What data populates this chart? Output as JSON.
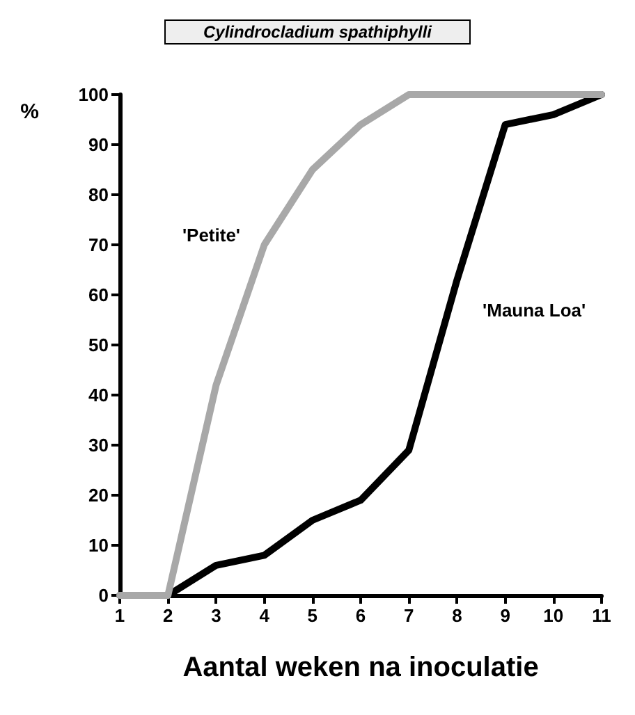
{
  "chart_data": {
    "type": "line",
    "title": "Cylindrocladium spathiphylli",
    "xlabel": "Aantal weken na inoculatie",
    "ylabel": "%",
    "x": [
      1,
      2,
      3,
      4,
      5,
      6,
      7,
      8,
      9,
      10,
      11
    ],
    "series": [
      {
        "name": "'Petite'",
        "color": "#a8a8a8",
        "values": [
          0,
          0,
          42,
          70,
          85,
          94,
          100,
          100,
          100,
          100,
          100
        ]
      },
      {
        "name": "'Mauna Loa'",
        "color": "#000000",
        "values": [
          0,
          0,
          6,
          8,
          15,
          19,
          29,
          63,
          94,
          96,
          100
        ]
      }
    ],
    "xlim": [
      1,
      11
    ],
    "xticks": [
      1,
      2,
      3,
      4,
      5,
      6,
      7,
      8,
      9,
      10,
      11
    ],
    "ylim": [
      0,
      100
    ],
    "yticks": [
      0,
      10,
      20,
      30,
      40,
      50,
      60,
      70,
      80,
      90,
      100
    ],
    "grid": false,
    "legend": false,
    "marker": "none",
    "line_style": "solid"
  }
}
